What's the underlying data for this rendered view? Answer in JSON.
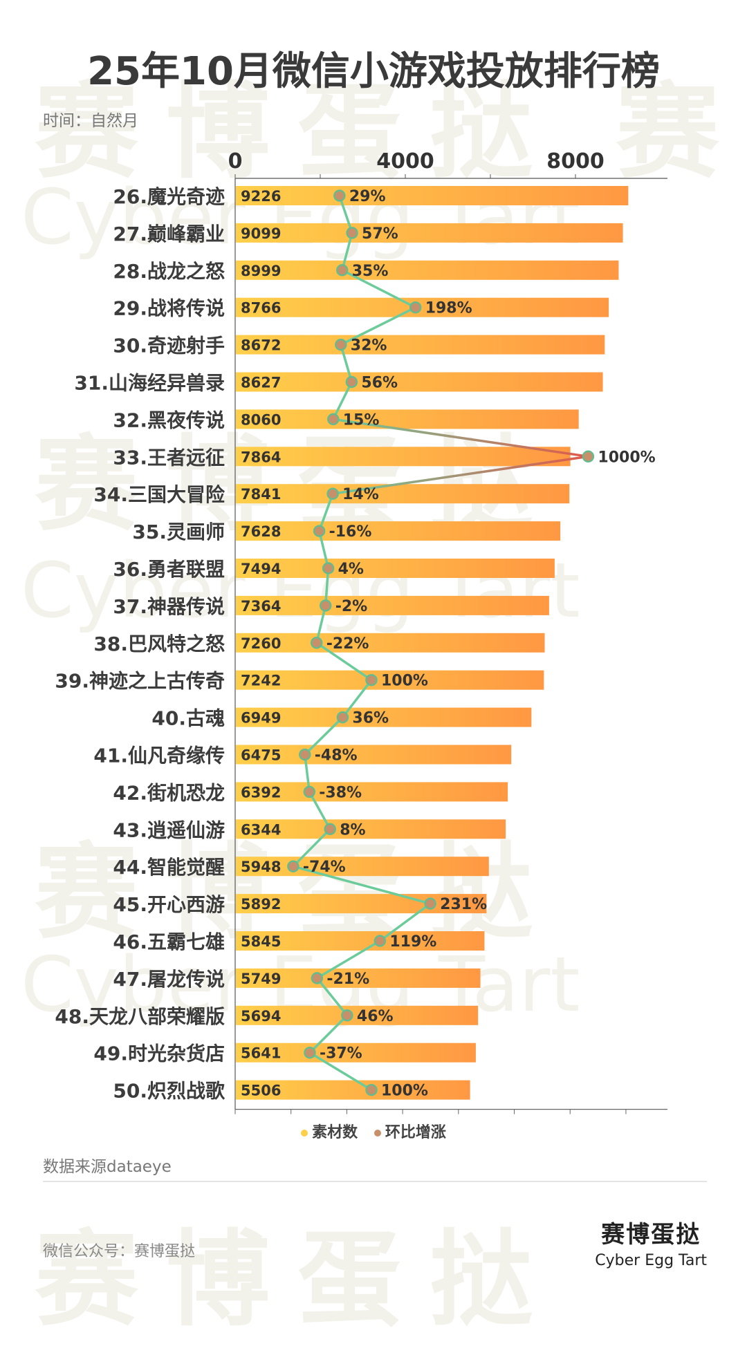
{
  "title": "25年10月微信小游戏投放排行榜",
  "subtitle": "时间：自然月",
  "source": "数据来源dataeye",
  "account": "微信公众号：赛博蛋挞",
  "brand": {
    "cn": "赛博蛋挞",
    "en": "Cyber Egg Tart"
  },
  "watermark": {
    "cn": "赛博蛋挞",
    "en": "Cyber Egg Tart"
  },
  "legend": {
    "bar": "素材数",
    "line": "环比增涨"
  },
  "colors": {
    "bar_start": "#FFCF4A",
    "bar_end": "#FF9843",
    "line": "#6CCB9A",
    "spike": "#E0584A",
    "marker_fill": "#C7906A",
    "marker_stroke": "#66BB8E"
  },
  "chart_data": {
    "type": "bar",
    "orientation": "horizontal",
    "x_ticks": [
      0,
      4000,
      8000
    ],
    "xlim": [
      0,
      10200
    ],
    "categories": [
      "26.魔光奇迹",
      "27.巅峰霸业",
      "28.战龙之怒",
      "29.战将传说",
      "30.奇迹射手",
      "31.山海经异兽录",
      "32.黑夜传说",
      "33.王者远征",
      "34.三国大冒险",
      "35.灵画师",
      "36.勇者联盟",
      "37.神器传说",
      "38.巴风特之怒",
      "39.神迹之上古传奇",
      "40.古魂",
      "41.仙凡奇缘传",
      "42.街机恐龙",
      "43.逍遥仙游",
      "44.智能觉醒",
      "45.开心西游",
      "46.五霸七雄",
      "47.屠龙传说",
      "48.天龙八部荣耀版",
      "49.时光杂货店",
      "50.炽烈战歌"
    ],
    "series": [
      {
        "name": "素材数",
        "type": "bar",
        "values": [
          9226,
          9099,
          8999,
          8766,
          8672,
          8627,
          8060,
          7864,
          7841,
          7628,
          7494,
          7364,
          7260,
          7242,
          6949,
          6475,
          6392,
          6344,
          5948,
          5892,
          5845,
          5749,
          5694,
          5641,
          5506
        ]
      },
      {
        "name": "环比增涨",
        "type": "line",
        "values": [
          29,
          57,
          35,
          198,
          32,
          56,
          15,
          1000,
          14,
          -16,
          4,
          -2,
          -22,
          100,
          36,
          -48,
          -38,
          8,
          -74,
          231,
          119,
          -21,
          46,
          -37,
          100
        ],
        "labels": [
          "29%",
          "57%",
          "35%",
          "198%",
          "32%",
          "56%",
          "15%",
          "1000%",
          "14%",
          "-16%",
          "4%",
          "-2%",
          "-22%",
          "100%",
          "36%",
          "-48%",
          "-38%",
          "8%",
          "-74%",
          "231%",
          "119%",
          "-21%",
          "46%",
          "-37%",
          "100%"
        ]
      }
    ],
    "legend_position": "bottom"
  }
}
